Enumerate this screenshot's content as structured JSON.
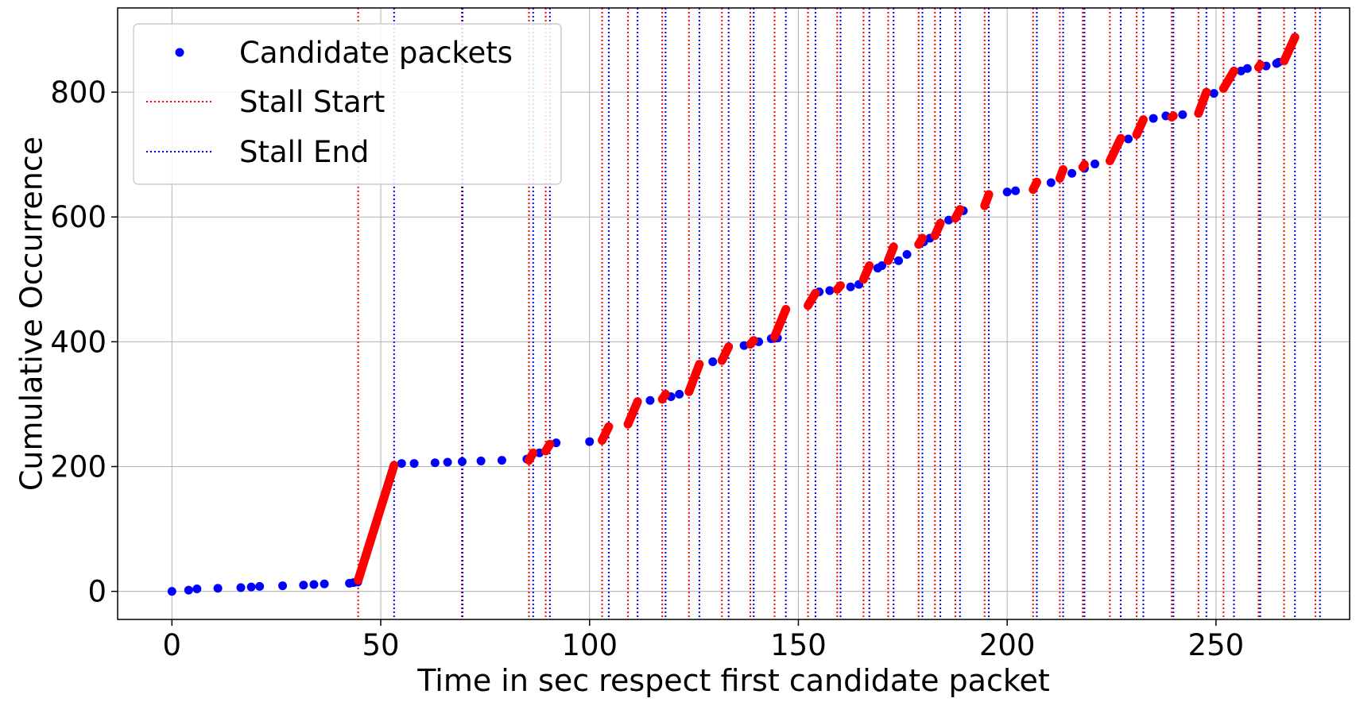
{
  "chart_data": {
    "type": "scatter",
    "xlabel": "Time in sec respect first candidate packet",
    "ylabel": "Cumulative Occurrence",
    "xlim": [
      -13,
      282
    ],
    "ylim": [
      -45,
      935
    ],
    "xticks": [
      0,
      50,
      100,
      150,
      200,
      250
    ],
    "yticks": [
      0,
      200,
      400,
      600,
      800
    ],
    "grid": true,
    "legend": {
      "position": "top-left",
      "entries": [
        {
          "label": "Candidate packets",
          "kind": "marker",
          "color": "#0000ff"
        },
        {
          "label": "Stall Start",
          "kind": "dotted-line",
          "color": "#ff0000"
        },
        {
          "label": "Stall End",
          "kind": "dotted-line",
          "color": "#0000ff"
        }
      ]
    },
    "colors": {
      "packet": "#0000ff",
      "stall_packet": "#ff0000",
      "stall_start": "#ff0000",
      "stall_end": "#0000ff",
      "grid": "#b0b0b0"
    },
    "stalls": [
      {
        "start": 44.6,
        "end": 53.2
      },
      {
        "start": 69.4,
        "end": 69.6
      },
      {
        "start": 85.5,
        "end": 86.5
      },
      {
        "start": 89.5,
        "end": 90.5
      },
      {
        "start": 103.0,
        "end": 104.6
      },
      {
        "start": 109.2,
        "end": 111.5
      },
      {
        "start": 117.4,
        "end": 118.2
      },
      {
        "start": 123.8,
        "end": 126.3
      },
      {
        "start": 131.7,
        "end": 133.3
      },
      {
        "start": 138.5,
        "end": 139.3
      },
      {
        "start": 144.3,
        "end": 147.0
      },
      {
        "start": 152.3,
        "end": 154.1
      },
      {
        "start": 159.3,
        "end": 160.1
      },
      {
        "start": 165.6,
        "end": 167.0
      },
      {
        "start": 171.5,
        "end": 172.8
      },
      {
        "start": 178.8,
        "end": 179.7
      },
      {
        "start": 182.7,
        "end": 184.0
      },
      {
        "start": 187.6,
        "end": 188.7
      },
      {
        "start": 194.6,
        "end": 195.6
      },
      {
        "start": 206.2,
        "end": 207.1
      },
      {
        "start": 212.6,
        "end": 213.4
      },
      {
        "start": 218.1,
        "end": 218.5
      },
      {
        "start": 224.6,
        "end": 227.2
      },
      {
        "start": 231.0,
        "end": 232.6
      },
      {
        "start": 239.4,
        "end": 239.8
      },
      {
        "start": 245.8,
        "end": 247.7
      },
      {
        "start": 251.8,
        "end": 254.3
      },
      {
        "start": 260.2,
        "end": 260.6
      },
      {
        "start": 266.3,
        "end": 268.9
      },
      {
        "start": 273.8,
        "end": 274.9
      }
    ],
    "packets": [
      [
        0,
        0
      ],
      [
        4,
        2
      ],
      [
        6,
        4
      ],
      [
        11,
        5
      ],
      [
        16.5,
        6
      ],
      [
        19,
        7
      ],
      [
        21,
        8
      ],
      [
        26.5,
        9
      ],
      [
        31.5,
        10
      ],
      [
        34,
        11
      ],
      [
        36.5,
        12
      ],
      [
        42.5,
        13
      ],
      [
        43.5,
        14
      ],
      [
        44.5,
        15
      ],
      [
        55,
        205
      ],
      [
        58,
        205
      ],
      [
        63,
        206
      ],
      [
        66,
        207
      ],
      [
        69.5,
        208
      ],
      [
        74,
        209
      ],
      [
        79,
        210
      ],
      [
        85,
        212
      ],
      [
        88,
        222
      ],
      [
        92,
        238
      ],
      [
        100,
        240
      ],
      [
        114.5,
        306
      ],
      [
        119.5,
        312
      ],
      [
        121.5,
        316
      ],
      [
        129.5,
        368
      ],
      [
        137,
        394
      ],
      [
        140.5,
        400
      ],
      [
        143.5,
        405
      ],
      [
        145,
        406
      ],
      [
        155,
        480
      ],
      [
        157.5,
        482
      ],
      [
        162.5,
        488
      ],
      [
        164.5,
        492
      ],
      [
        169,
        518
      ],
      [
        170,
        522
      ],
      [
        174,
        530
      ],
      [
        176,
        540
      ],
      [
        180,
        560
      ],
      [
        181.5,
        566
      ],
      [
        186,
        595
      ],
      [
        189.5,
        610
      ],
      [
        200,
        640
      ],
      [
        202,
        642
      ],
      [
        210.5,
        655
      ],
      [
        215.5,
        670
      ],
      [
        218.5,
        678
      ],
      [
        221,
        685
      ],
      [
        229,
        725
      ],
      [
        235,
        758
      ],
      [
        238,
        762
      ],
      [
        242,
        764
      ],
      [
        249.5,
        798
      ],
      [
        256,
        834
      ],
      [
        257.5,
        838
      ],
      [
        262,
        842
      ],
      [
        264.5,
        846
      ],
      [
        265,
        848
      ]
    ],
    "stall_segments": [
      {
        "x0": 44.6,
        "x1": 53.2,
        "y0": 18,
        "y1": 202,
        "n": 90
      },
      {
        "x0": 85.5,
        "x1": 86.5,
        "y0": 210,
        "y1": 222,
        "n": 6
      },
      {
        "x0": 89.5,
        "x1": 90.5,
        "y0": 225,
        "y1": 236,
        "n": 6
      },
      {
        "x0": 103.0,
        "x1": 104.6,
        "y0": 242,
        "y1": 264,
        "n": 10
      },
      {
        "x0": 109.2,
        "x1": 111.5,
        "y0": 268,
        "y1": 304,
        "n": 14
      },
      {
        "x0": 117.4,
        "x1": 118.2,
        "y0": 308,
        "y1": 316,
        "n": 4
      },
      {
        "x0": 123.8,
        "x1": 126.3,
        "y0": 320,
        "y1": 364,
        "n": 16
      },
      {
        "x0": 131.7,
        "x1": 133.3,
        "y0": 370,
        "y1": 392,
        "n": 10
      },
      {
        "x0": 138.5,
        "x1": 139.3,
        "y0": 396,
        "y1": 402,
        "n": 3
      },
      {
        "x0": 144.3,
        "x1": 147.0,
        "y0": 408,
        "y1": 452,
        "n": 16
      },
      {
        "x0": 152.3,
        "x1": 154.1,
        "y0": 458,
        "y1": 478,
        "n": 10
      },
      {
        "x0": 159.3,
        "x1": 160.1,
        "y0": 484,
        "y1": 490,
        "n": 3
      },
      {
        "x0": 165.6,
        "x1": 167.0,
        "y0": 500,
        "y1": 522,
        "n": 10
      },
      {
        "x0": 171.5,
        "x1": 172.8,
        "y0": 530,
        "y1": 552,
        "n": 10
      },
      {
        "x0": 178.8,
        "x1": 179.7,
        "y0": 556,
        "y1": 566,
        "n": 5
      },
      {
        "x0": 182.7,
        "x1": 184.0,
        "y0": 570,
        "y1": 590,
        "n": 8
      },
      {
        "x0": 187.6,
        "x1": 188.7,
        "y0": 598,
        "y1": 612,
        "n": 6
      },
      {
        "x0": 194.6,
        "x1": 195.6,
        "y0": 618,
        "y1": 636,
        "n": 8
      },
      {
        "x0": 206.2,
        "x1": 207.1,
        "y0": 644,
        "y1": 656,
        "n": 6
      },
      {
        "x0": 212.6,
        "x1": 213.4,
        "y0": 662,
        "y1": 676,
        "n": 6
      },
      {
        "x0": 218.1,
        "x1": 218.5,
        "y0": 680,
        "y1": 684,
        "n": 2
      },
      {
        "x0": 224.6,
        "x1": 227.2,
        "y0": 690,
        "y1": 726,
        "n": 14
      },
      {
        "x0": 231.0,
        "x1": 232.6,
        "y0": 732,
        "y1": 756,
        "n": 10
      },
      {
        "x0": 239.4,
        "x1": 239.8,
        "y0": 760,
        "y1": 762,
        "n": 2
      },
      {
        "x0": 245.8,
        "x1": 247.7,
        "y0": 766,
        "y1": 800,
        "n": 12
      },
      {
        "x0": 251.8,
        "x1": 254.3,
        "y0": 806,
        "y1": 834,
        "n": 12
      },
      {
        "x0": 260.2,
        "x1": 260.6,
        "y0": 840,
        "y1": 844,
        "n": 2
      },
      {
        "x0": 266.3,
        "x1": 268.9,
        "y0": 850,
        "y1": 888,
        "n": 16
      }
    ]
  }
}
